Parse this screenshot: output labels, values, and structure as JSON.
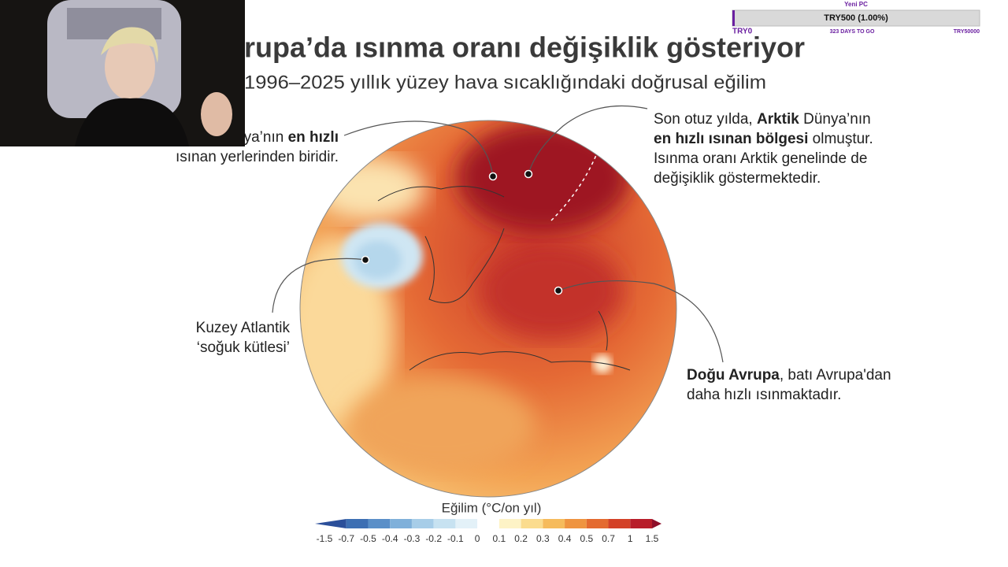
{
  "widget": {
    "title": "Yeni PC",
    "progress_text": "TRY500 (1.00%)",
    "start": "TRY0",
    "days_left": "323 DAYS TO GO",
    "goal": "TRY50000"
  },
  "infographic": {
    "title": "rupa’da ısınma oranı değişiklik gösteriyor",
    "subtitle": "1996–2025 yıllık yüzey hava sıcaklığındaki doğrusal eğilim",
    "annotations": [
      {
        "lines": [
          [
            {
              "text": "ya’nın ",
              "bold": false
            },
            {
              "text": "en hızlı",
              "bold": true
            }
          ],
          [
            {
              "text": "ısınan yerlerinden biridir.",
              "bold": false
            }
          ]
        ]
      },
      {
        "lines": [
          [
            {
              "text": "Son otuz yılda, ",
              "bold": false
            },
            {
              "text": "Arktik",
              "bold": true
            },
            {
              "text": " Dünya’nın",
              "bold": false
            }
          ],
          [
            {
              "text": "en hızlı ısınan bölgesi",
              "bold": true
            },
            {
              "text": " olmuştur.",
              "bold": false
            }
          ],
          [
            {
              "text": "Isınma oranı Arktik genelinde de",
              "bold": false
            }
          ],
          [
            {
              "text": "değişiklik göstermektedir.",
              "bold": false
            }
          ]
        ]
      },
      {
        "lines": [
          [
            {
              "text": "Kuzey Atlantik",
              "bold": false
            }
          ],
          [
            {
              "text": "‘soğuk kütlesi’",
              "bold": false
            }
          ]
        ]
      },
      {
        "lines": [
          [
            {
              "text": "Doğu Avrupa",
              "bold": true
            },
            {
              "text": ", batı Avrupa'dan",
              "bold": false
            }
          ],
          [
            {
              "text": "daha hızlı ısınmaktadır.",
              "bold": false
            }
          ]
        ]
      }
    ],
    "legend": {
      "title": "Eğilim (°C/on yıl)",
      "labels": [
        "-1.5",
        "-0.7",
        "-0.5",
        "-0.4",
        "-0.3",
        "-0.2",
        "-0.1",
        "0",
        "0.1",
        "0.2",
        "0.3",
        "0.4",
        "0.5",
        "0.7",
        "1",
        "1.5"
      ],
      "colors": [
        "#2b4f9a",
        "#3d6fb3",
        "#5a8fc8",
        "#7fb0da",
        "#a7cde8",
        "#c7e2f1",
        "#e3f1f8",
        "#ffffff",
        "#fdf3c6",
        "#fbdc8e",
        "#f6bb5c",
        "#ef9440",
        "#e46a2f",
        "#d34127",
        "#b81d2a",
        "#8e0f2a"
      ]
    }
  }
}
